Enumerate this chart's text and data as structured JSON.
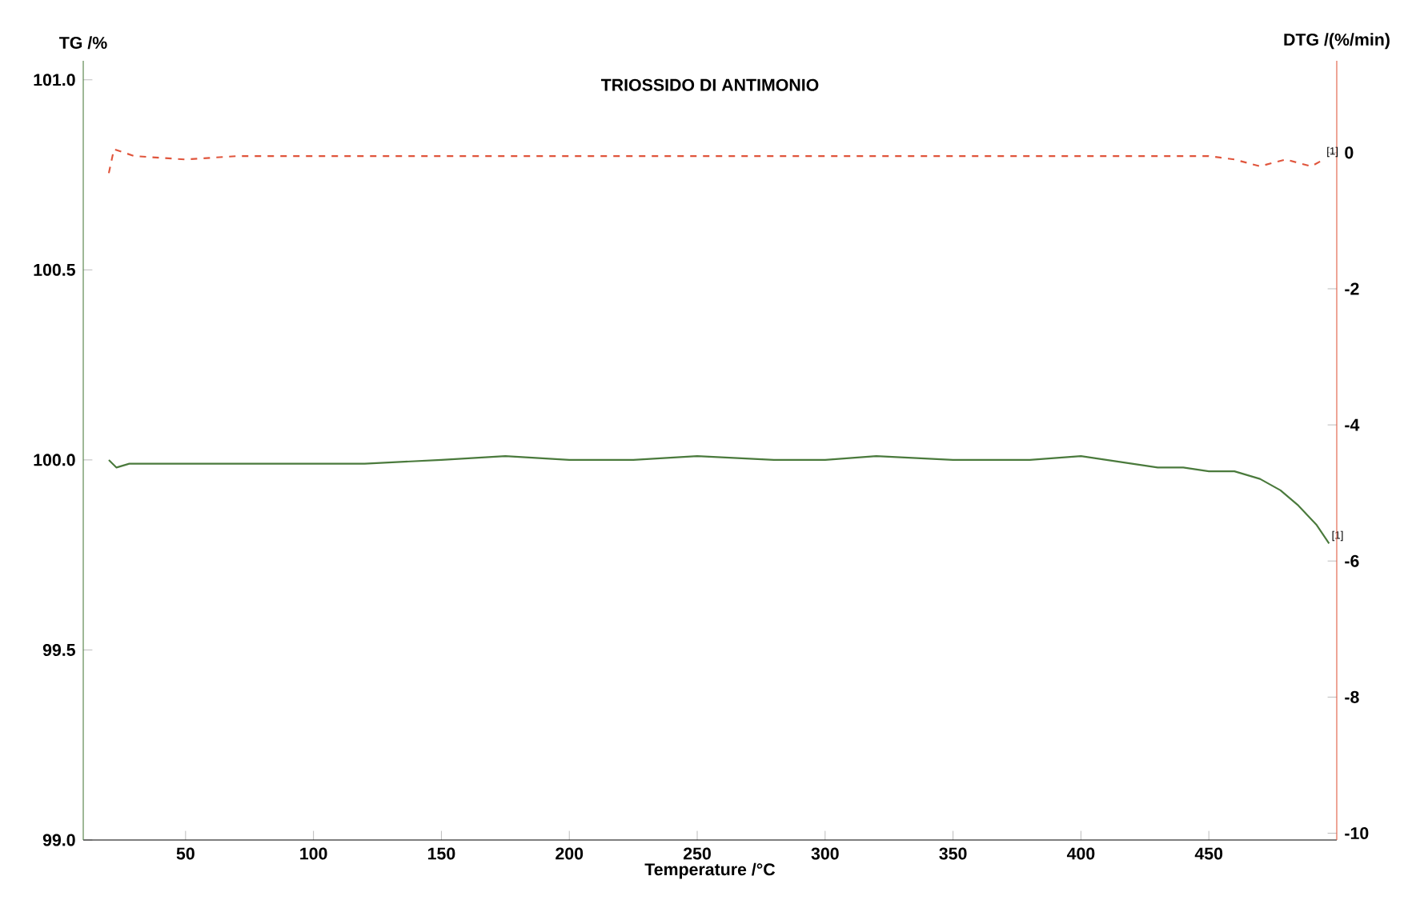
{
  "chart_data": {
    "type": "line",
    "title": "TRIOSSIDO DI ANTIMONIO",
    "xlabel": "Temperature /°C",
    "ylabel": "TG /%",
    "y2label": "DTG /(%/min)",
    "xlim": [
      10,
      500
    ],
    "xticks": [
      50,
      100,
      150,
      200,
      250,
      300,
      350,
      400,
      450
    ],
    "ylim": [
      99.0,
      101.05
    ],
    "yticks": [
      {
        "value": 99.0,
        "label": "99.0"
      },
      {
        "value": 99.5,
        "label": "99.5"
      },
      {
        "value": 100.0,
        "label": "100.0"
      },
      {
        "value": 100.5,
        "label": "100.5"
      },
      {
        "value": 101.0,
        "label": "101.0"
      }
    ],
    "y2lim": [
      -10.1,
      1.35
    ],
    "y2ticks": [
      -10,
      -8,
      -6,
      -4,
      -2,
      0
    ],
    "grid": false,
    "marker": "none",
    "series": [
      {
        "color": "#4a7a3c",
        "line_style": "solid",
        "x": [
          20,
          23,
          28,
          50,
          80,
          100,
          120,
          150,
          175,
          200,
          225,
          250,
          280,
          300,
          320,
          350,
          380,
          400,
          410,
          420,
          430,
          440,
          450,
          460,
          470,
          478,
          485,
          492,
          497
        ],
        "values": [
          100.0,
          99.98,
          99.99,
          99.99,
          99.99,
          99.99,
          99.99,
          100.0,
          100.01,
          100.0,
          100.0,
          100.01,
          100.0,
          100.0,
          100.01,
          100.0,
          100.0,
          100.01,
          100.0,
          99.99,
          99.98,
          99.98,
          99.97,
          99.97,
          99.95,
          99.92,
          99.88,
          99.83,
          99.78
        ]
      },
      {
        "color": "#e0553c",
        "line_style": "dashed",
        "axis": "y2",
        "x": [
          20,
          22,
          30,
          50,
          70,
          100,
          130,
          160,
          200,
          240,
          280,
          320,
          360,
          400,
          430,
          450,
          460,
          470,
          480,
          490,
          495
        ],
        "values": [
          -0.3,
          0.05,
          -0.05,
          -0.1,
          -0.05,
          -0.05,
          -0.05,
          -0.05,
          -0.05,
          -0.05,
          -0.05,
          -0.05,
          -0.05,
          -0.05,
          -0.05,
          -0.05,
          -0.1,
          -0.2,
          -0.1,
          -0.2,
          -0.1
        ]
      }
    ],
    "annotations": [
      "[1]",
      "[1]"
    ]
  }
}
